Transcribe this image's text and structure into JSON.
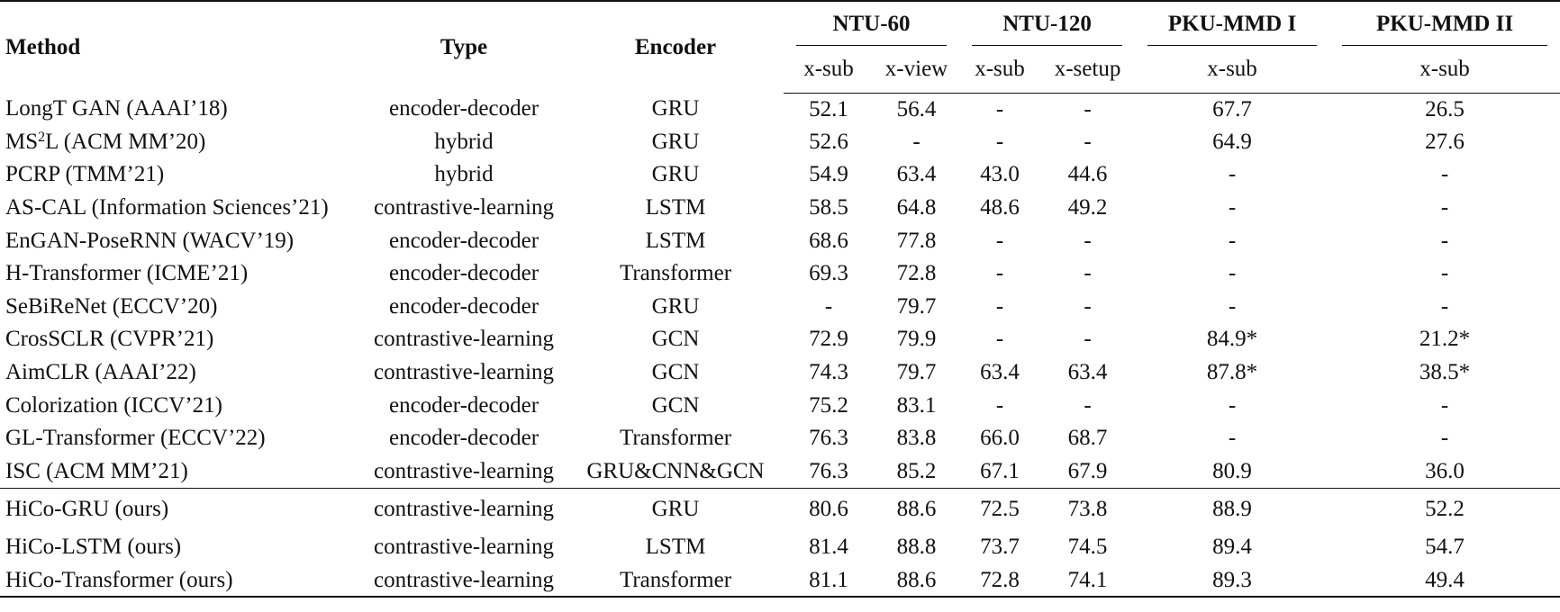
{
  "headers": {
    "method": "Method",
    "type": "Type",
    "encoder": "Encoder",
    "groups": [
      "NTU-60",
      "NTU-120",
      "PKU-MMD I",
      "PKU-MMD II"
    ],
    "subcols": [
      "x-sub",
      "x-view",
      "x-sub",
      "x-setup",
      "x-sub",
      "x-sub"
    ]
  },
  "rows": [
    {
      "method": "LongT GAN (AAAI’18)",
      "type": "encoder-decoder",
      "encoder": "GRU",
      "values": [
        "52.1",
        "56.4",
        "-",
        "-",
        "67.7",
        "26.5"
      ]
    },
    {
      "method_pre": "MS",
      "method_sup": "2",
      "method_post": "L (ACM MM’20)",
      "type": "hybrid",
      "encoder": "GRU",
      "values": [
        "52.6",
        "-",
        "-",
        "-",
        "64.9",
        "27.6"
      ]
    },
    {
      "method": "PCRP (TMM’21)",
      "type": "hybrid",
      "encoder": "GRU",
      "values": [
        "54.9",
        "63.4",
        "43.0",
        "44.6",
        "-",
        "-"
      ]
    },
    {
      "method": "AS-CAL (Information Sciences’21)",
      "type": "contrastive-learning",
      "encoder": "LSTM",
      "values": [
        "58.5",
        "64.8",
        "48.6",
        "49.2",
        "-",
        "-"
      ]
    },
    {
      "method": "EnGAN-PoseRNN (WACV’19)",
      "type": "encoder-decoder",
      "encoder": "LSTM",
      "values": [
        "68.6",
        "77.8",
        "-",
        "-",
        "-",
        "-"
      ]
    },
    {
      "method": "H-Transformer (ICME’21)",
      "type": "encoder-decoder",
      "encoder": "Transformer",
      "values": [
        "69.3",
        "72.8",
        "-",
        "-",
        "-",
        "-"
      ]
    },
    {
      "method": "SeBiReNet (ECCV’20)",
      "type": "encoder-decoder",
      "encoder": "GRU",
      "values": [
        "-",
        "79.7",
        "-",
        "-",
        "-",
        "-"
      ]
    },
    {
      "method": "CrosSCLR (CVPR’21)",
      "type": "contrastive-learning",
      "encoder": "GCN",
      "values": [
        "72.9",
        "79.9",
        "-",
        "-",
        "84.9*",
        "21.2*"
      ]
    },
    {
      "method": "AimCLR (AAAI’22)",
      "type": "contrastive-learning",
      "encoder": "GCN",
      "values": [
        "74.3",
        "79.7",
        "63.4",
        "63.4",
        "87.8*",
        "38.5*"
      ]
    },
    {
      "method": "Colorization (ICCV’21)",
      "type": "encoder-decoder",
      "encoder": "GCN",
      "values": [
        "75.2",
        "83.1",
        "-",
        "-",
        "-",
        "-"
      ]
    },
    {
      "method": "GL-Transformer (ECCV’22)",
      "type": "encoder-decoder",
      "encoder": "Transformer",
      "values": [
        "76.3",
        "83.8",
        "66.0",
        "68.7",
        "-",
        "-"
      ]
    },
    {
      "method": "ISC (ACM MM’21)",
      "type": "contrastive-learning",
      "encoder": "GRU&CNN&GCN",
      "values": [
        "76.3",
        "85.2",
        "67.1",
        "67.9",
        "80.9",
        "36.0"
      ]
    }
  ],
  "ours": [
    {
      "method": "HiCo-GRU (ours)",
      "type": "contrastive-learning",
      "encoder": "GRU",
      "values": [
        "80.6",
        "88.6",
        "72.5",
        "73.8",
        "88.9",
        "52.2"
      ]
    },
    {
      "method": "HiCo-LSTM (ours)",
      "type": "contrastive-learning",
      "encoder": "LSTM",
      "values": [
        "81.4",
        "88.8",
        "73.7",
        "74.5",
        "89.4",
        "54.7"
      ]
    },
    {
      "method": "HiCo-Transformer (ours)",
      "type": "contrastive-learning",
      "encoder": "Transformer",
      "values": [
        "81.1",
        "88.6",
        "72.8",
        "74.1",
        "89.3",
        "49.4"
      ]
    }
  ]
}
